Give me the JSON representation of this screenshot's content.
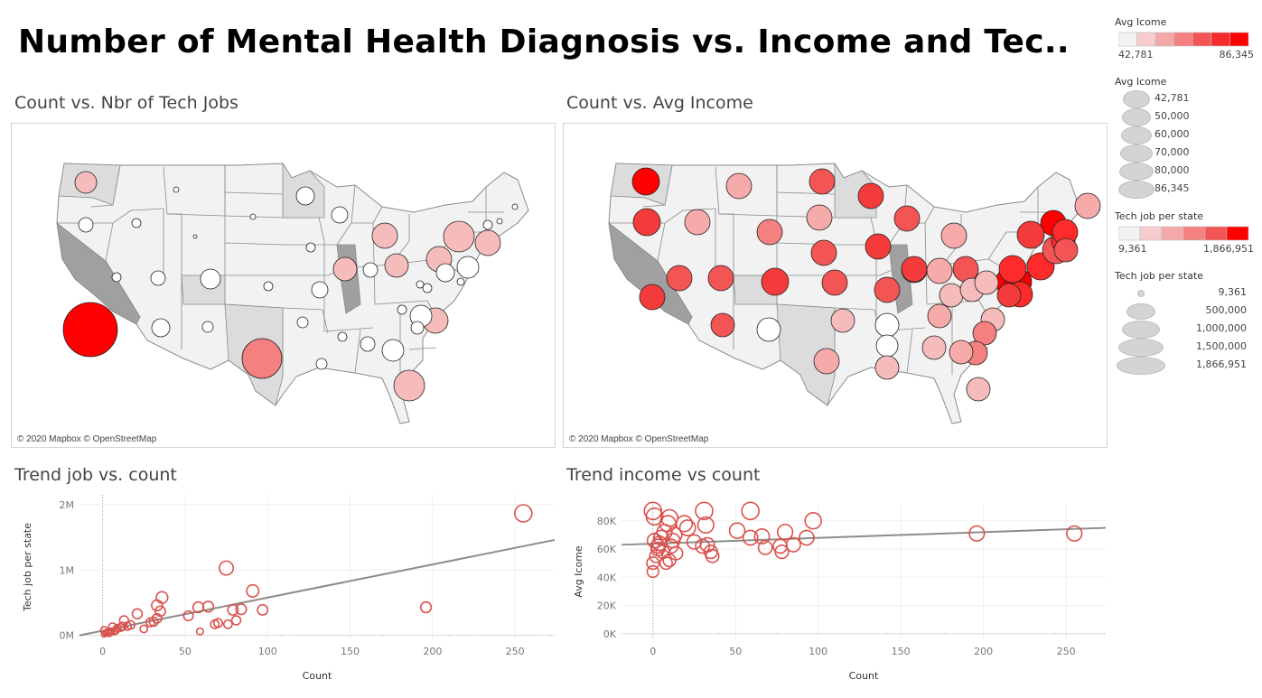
{
  "title": "Number of Mental Health Diagnosis vs.  Income and Tec..",
  "map_credit": "© 2020 Mapbox © OpenStreetMap",
  "colors": {
    "accent": "#ff0000",
    "mark_stroke": "#d9534f",
    "trend": "#8c8c8c",
    "state_fill": "#f2f2f2",
    "state_dark": "#a0a0a0"
  },
  "legends": {
    "avg_color": {
      "title": "Avg Icome",
      "min": "42,781",
      "max": 86345,
      "max_label": "86,345",
      "swatches": [
        "#f2f2f2",
        "#f6cccc",
        "#f5a8a8",
        "#f48080",
        "#f35454",
        "#f52a2a",
        "#ff0000"
      ]
    },
    "avg_size": {
      "title": "Avg Icome",
      "items": [
        "42,781",
        "50,000",
        "60,000",
        "70,000",
        "80,000",
        "86,345"
      ]
    },
    "tech_color": {
      "title": "Tech job per state",
      "min": "9,361",
      "max_label": "1,866,951",
      "swatches": [
        "#f2f2f2",
        "#f6cccc",
        "#f5a8a8",
        "#f48080",
        "#f35454",
        "#ff0000"
      ]
    },
    "tech_size": {
      "title": "Tech job per state",
      "items": [
        "9,361",
        "500,000",
        "1,000,000",
        "1,500,000",
        "1,866,951"
      ]
    }
  },
  "chart_data": [
    {
      "type": "map",
      "title": "Count vs. Nbr of Tech Jobs",
      "size_measure": "Count",
      "color_measure": "Tech job per state"
    },
    {
      "type": "map",
      "title": "Count vs. Avg Income",
      "size_measure": "Count",
      "color_measure": "Avg Icome"
    },
    {
      "type": "scatter",
      "title": "Trend job vs. count",
      "xlabel": "Count",
      "ylabel": "Tech job per state",
      "xticks": [
        "0",
        "50",
        "100",
        "150",
        "200",
        "250"
      ],
      "yticks": [
        "0M",
        "1M",
        "2M"
      ],
      "xlim": [
        -14,
        274
      ],
      "ylim": [
        -60000,
        2150000
      ],
      "trend": {
        "x0": -14,
        "y0": 0,
        "x1": 274,
        "y1": 1460000
      },
      "points": [
        [
          255,
          1867000
        ],
        [
          196,
          430000
        ],
        [
          75,
          1030000
        ],
        [
          91,
          680000
        ],
        [
          97,
          390000
        ],
        [
          84,
          400000
        ],
        [
          79,
          390000
        ],
        [
          81,
          230000
        ],
        [
          68,
          170000
        ],
        [
          70,
          190000
        ],
        [
          76,
          170000
        ],
        [
          64,
          440000
        ],
        [
          58,
          430000
        ],
        [
          59,
          60000
        ],
        [
          52,
          300000
        ],
        [
          36,
          580000
        ],
        [
          33,
          460000
        ],
        [
          35,
          370000
        ],
        [
          31,
          210000
        ],
        [
          33,
          260000
        ],
        [
          29,
          200000
        ],
        [
          21,
          330000
        ],
        [
          25,
          100000
        ],
        [
          17,
          160000
        ],
        [
          15,
          140000
        ],
        [
          13,
          230000
        ],
        [
          11,
          120000
        ],
        [
          9,
          110000
        ],
        [
          6,
          130000
        ],
        [
          7,
          60000
        ],
        [
          5,
          60000
        ],
        [
          4,
          30000
        ],
        [
          1,
          80000
        ],
        [
          1,
          20000
        ],
        [
          3,
          50000
        ],
        [
          8,
          80000
        ],
        [
          12,
          140000
        ],
        [
          2,
          40000
        ]
      ]
    },
    {
      "type": "scatter",
      "title": "Trend income vs count",
      "xlabel": "Count",
      "ylabel": "Avg Icome",
      "xticks": [
        "0",
        "50",
        "100",
        "150",
        "200",
        "250"
      ],
      "yticks": [
        "0K",
        "20K",
        "40K",
        "60K",
        "80K"
      ],
      "xlim": [
        -19,
        274
      ],
      "ylim": [
        -4000,
        92000
      ],
      "trend": {
        "x0": -19,
        "y0": 63000,
        "x1": 274,
        "y1": 75000
      },
      "points": [
        [
          0,
          87000
        ],
        [
          1,
          83000
        ],
        [
          9,
          78000
        ],
        [
          10,
          82000
        ],
        [
          7,
          72000
        ],
        [
          5,
          68000
        ],
        [
          4,
          64000
        ],
        [
          3,
          60000
        ],
        [
          2,
          55000
        ],
        [
          0,
          50000
        ],
        [
          0,
          44000
        ],
        [
          1,
          66000
        ],
        [
          3,
          62000
        ],
        [
          6,
          58000
        ],
        [
          8,
          50000
        ],
        [
          10,
          52000
        ],
        [
          12,
          66000
        ],
        [
          13,
          70000
        ],
        [
          14,
          57000
        ],
        [
          19,
          78000
        ],
        [
          21,
          75000
        ],
        [
          25,
          65000
        ],
        [
          30,
          62000
        ],
        [
          31,
          87000
        ],
        [
          32,
          77000
        ],
        [
          33,
          63000
        ],
        [
          35,
          58000
        ],
        [
          36,
          55000
        ],
        [
          51,
          73000
        ],
        [
          59,
          87000
        ],
        [
          59,
          68000
        ],
        [
          66,
          69000
        ],
        [
          68,
          61000
        ],
        [
          77,
          62000
        ],
        [
          78,
          58000
        ],
        [
          80,
          72000
        ],
        [
          85,
          63000
        ],
        [
          93,
          68000
        ],
        [
          97,
          80000
        ],
        [
          11,
          62000
        ],
        [
          196,
          71000
        ],
        [
          255,
          71000
        ]
      ]
    }
  ]
}
